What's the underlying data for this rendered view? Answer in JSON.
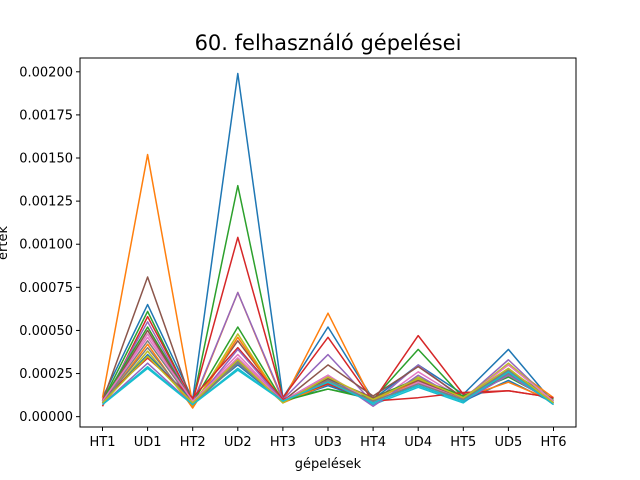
{
  "chart_data": {
    "type": "line",
    "title": "60. felhasználó gépelései",
    "xlabel": "gépelések",
    "ylabel": "érték",
    "categories": [
      "HT1",
      "UD1",
      "HT2",
      "UD2",
      "HT3",
      "UD3",
      "HT4",
      "UD4",
      "HT5",
      "UD5",
      "HT6"
    ],
    "yticks": [
      "0.00000",
      "0.00025",
      "0.00050",
      "0.00075",
      "0.00100",
      "0.00125",
      "0.00150",
      "0.00175",
      "0.00200"
    ],
    "ylim": [
      -6e-05,
      0.00208
    ],
    "grid": false,
    "series": [
      {
        "color": "#1f77b4",
        "values": [
          0.00011,
          0.00065,
          0.0001,
          0.00199,
          0.00011,
          0.00052,
          0.0001,
          0.0003,
          0.00013,
          0.00039,
          8e-05
        ]
      },
      {
        "color": "#ff7f0e",
        "values": [
          0.00011,
          0.00152,
          7e-05,
          0.00072,
          9e-05,
          0.0006,
          8e-05,
          0.00021,
          0.00011,
          0.0003,
          0.00011
        ]
      },
      {
        "color": "#2ca02c",
        "values": [
          9e-05,
          0.00061,
          8e-05,
          0.00134,
          0.0001,
          0.00016,
          0.0001,
          0.00039,
          0.00011,
          0.00027,
          0.0001
        ]
      },
      {
        "color": "#d62728",
        "values": [
          6e-05,
          0.00058,
          9e-05,
          0.00104,
          0.00011,
          0.00046,
          9e-05,
          0.00047,
          0.00013,
          0.00015,
          0.00011
        ]
      },
      {
        "color": "#9467bd",
        "values": [
          8e-05,
          0.00055,
          8e-05,
          0.00072,
          0.0001,
          0.00036,
          8e-05,
          0.0003,
          0.0001,
          0.00033,
          8e-05
        ]
      },
      {
        "color": "#8c564b",
        "values": [
          9e-05,
          0.00081,
          7e-05,
          0.00044,
          9e-05,
          0.0003,
          0.00012,
          0.00029,
          0.00011,
          0.00024,
          9e-05
        ]
      },
      {
        "color": "#e377c2",
        "values": [
          8e-05,
          0.00048,
          9e-05,
          0.00036,
          9e-05,
          0.00024,
          7e-05,
          0.00026,
          0.0001,
          0.00028,
          8e-05
        ]
      },
      {
        "color": "#7f7f7f",
        "values": [
          8e-05,
          0.00044,
          8e-05,
          0.00032,
          8e-05,
          0.0002,
          8e-05,
          0.0002,
          9e-05,
          0.00025,
          8e-05
        ]
      },
      {
        "color": "#bcbd22",
        "values": [
          7e-05,
          0.00038,
          6e-05,
          0.00048,
          8e-05,
          0.00021,
          9e-05,
          0.00023,
          0.0001,
          0.00031,
          9e-05
        ]
      },
      {
        "color": "#17becf",
        "values": [
          7e-05,
          0.00028,
          7e-05,
          0.00027,
          9e-05,
          0.00022,
          7e-05,
          0.00017,
          8e-05,
          0.00027,
          7e-05
        ]
      },
      {
        "color": "#1f77b4",
        "values": [
          8e-05,
          0.00036,
          9e-05,
          0.0003,
          9e-05,
          0.00018,
          9e-05,
          0.00018,
          9e-05,
          0.00021,
          8e-05
        ]
      },
      {
        "color": "#ff7f0e",
        "values": [
          7e-05,
          0.00042,
          5e-05,
          0.00046,
          8e-05,
          0.00019,
          0.0001,
          0.00021,
          0.00011,
          0.0002,
          9e-05
        ]
      },
      {
        "color": "#2ca02c",
        "values": [
          9e-05,
          0.00052,
          8e-05,
          0.00052,
          9e-05,
          0.00016,
          0.00011,
          0.00022,
          0.00012,
          0.00023,
          9e-05
        ]
      },
      {
        "color": "#d62728",
        "values": [
          0.0001,
          0.00034,
          0.00011,
          0.0004,
          0.0001,
          0.00019,
          9e-05,
          0.00011,
          0.00014,
          0.00015,
          0.00011
        ]
      },
      {
        "color": "#9467bd",
        "values": [
          7e-05,
          0.00031,
          7e-05,
          0.00039,
          9e-05,
          0.00024,
          6e-05,
          0.00024,
          9e-05,
          0.00024,
          8e-05
        ]
      },
      {
        "color": "#8c564b",
        "values": [
          8e-05,
          0.0005,
          8e-05,
          0.00034,
          9e-05,
          0.00022,
          0.00011,
          0.00021,
          0.0001,
          0.00026,
          7e-05
        ]
      },
      {
        "color": "#e377c2",
        "values": [
          9e-05,
          0.00046,
          9e-05,
          0.00034,
          9e-05,
          0.00024,
          8e-05,
          0.0002,
          0.0001,
          0.0003,
          9e-05
        ]
      },
      {
        "color": "#7f7f7f",
        "values": [
          8e-05,
          0.0004,
          7e-05,
          0.00031,
          9e-05,
          0.00021,
          9e-05,
          0.00019,
          0.0001,
          0.00027,
          8e-05
        ]
      },
      {
        "color": "#bcbd22",
        "values": [
          8e-05,
          0.00035,
          8e-05,
          0.00033,
          8e-05,
          0.00023,
          0.0001,
          0.00022,
          0.00011,
          0.00028,
          8e-05
        ]
      },
      {
        "color": "#17becf",
        "values": [
          7e-05,
          0.00029,
          7e-05,
          0.00028,
          9e-05,
          0.0002,
          8e-05,
          0.00018,
          9e-05,
          0.00026,
          7e-05
        ]
      }
    ]
  }
}
